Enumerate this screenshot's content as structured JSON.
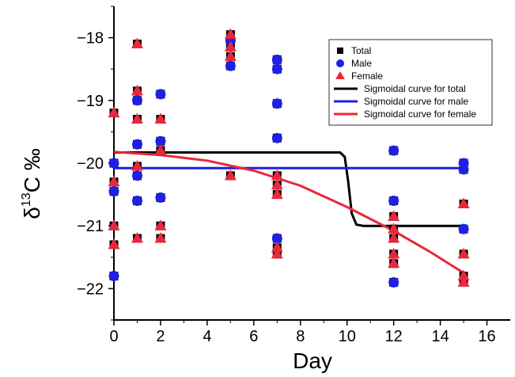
{
  "chart_data": {
    "type": "scatter",
    "title": "",
    "xlabel": "Day",
    "ylabel": {
      "delta": "δ",
      "sup": "13",
      "rest": "C ‰"
    },
    "xlim": [
      0,
      17
    ],
    "ylim": [
      -22.5,
      -17.5
    ],
    "xticks": [
      0,
      2,
      4,
      6,
      8,
      10,
      12,
      14,
      16
    ],
    "yticks": [
      -22,
      -21,
      -20,
      -19,
      -18
    ],
    "grid": false,
    "legend_position": "top-right",
    "colors": {
      "total": "#000000",
      "male": "#1f1fe6",
      "female": "#e8283a"
    },
    "series": [
      {
        "name": "Total",
        "marker": "square",
        "points": [
          [
            0,
            -19.2
          ],
          [
            0,
            -20.0
          ],
          [
            0,
            -20.3
          ],
          [
            0,
            -20.45
          ],
          [
            0,
            -21.0
          ],
          [
            0,
            -21.3
          ],
          [
            0,
            -21.8
          ],
          [
            1,
            -18.1
          ],
          [
            1,
            -18.85
          ],
          [
            1,
            -19.0
          ],
          [
            1,
            -19.3
          ],
          [
            1,
            -19.7
          ],
          [
            1,
            -20.05
          ],
          [
            1,
            -20.2
          ],
          [
            1,
            -20.6
          ],
          [
            1,
            -21.2
          ],
          [
            2,
            -18.9
          ],
          [
            2,
            -19.3
          ],
          [
            2,
            -19.65
          ],
          [
            2,
            -19.8
          ],
          [
            2,
            -20.55
          ],
          [
            2,
            -21.0
          ],
          [
            2,
            -21.2
          ],
          [
            5,
            -17.95
          ],
          [
            5,
            -18.05
          ],
          [
            5,
            -18.15
          ],
          [
            5,
            -18.3
          ],
          [
            5,
            -18.45
          ],
          [
            5,
            -20.2
          ],
          [
            7,
            -18.35
          ],
          [
            7,
            -18.5
          ],
          [
            7,
            -19.05
          ],
          [
            7,
            -19.6
          ],
          [
            7,
            -20.2
          ],
          [
            7,
            -20.35
          ],
          [
            7,
            -20.5
          ],
          [
            7,
            -21.2
          ],
          [
            7,
            -21.35
          ],
          [
            7,
            -21.45
          ],
          [
            12,
            -19.8
          ],
          [
            12,
            -20.6
          ],
          [
            12,
            -20.85
          ],
          [
            12,
            -21.05
          ],
          [
            12,
            -21.2
          ],
          [
            12,
            -21.45
          ],
          [
            12,
            -21.6
          ],
          [
            12,
            -21.9
          ],
          [
            15,
            -20.0
          ],
          [
            15,
            -20.1
          ],
          [
            15,
            -20.65
          ],
          [
            15,
            -21.05
          ],
          [
            15,
            -21.45
          ],
          [
            15,
            -21.8
          ],
          [
            15,
            -21.9
          ]
        ]
      },
      {
        "name": "Male",
        "marker": "circle",
        "points": [
          [
            0,
            -20.0
          ],
          [
            0,
            -20.45
          ],
          [
            0,
            -21.8
          ],
          [
            1,
            -19.0
          ],
          [
            1,
            -19.7
          ],
          [
            1,
            -20.2
          ],
          [
            1,
            -20.6
          ],
          [
            2,
            -18.9
          ],
          [
            2,
            -19.65
          ],
          [
            2,
            -20.55
          ],
          [
            5,
            -18.05
          ],
          [
            5,
            -18.45
          ],
          [
            7,
            -18.35
          ],
          [
            7,
            -18.5
          ],
          [
            7,
            -19.05
          ],
          [
            7,
            -19.6
          ],
          [
            7,
            -21.2
          ],
          [
            12,
            -19.8
          ],
          [
            12,
            -20.6
          ],
          [
            12,
            -21.9
          ],
          [
            15,
            -20.0
          ],
          [
            15,
            -20.1
          ],
          [
            15,
            -21.05
          ]
        ]
      },
      {
        "name": "Female",
        "marker": "triangle",
        "points": [
          [
            0,
            -19.2
          ],
          [
            0,
            -20.3
          ],
          [
            0,
            -21.0
          ],
          [
            0,
            -21.3
          ],
          [
            1,
            -18.1
          ],
          [
            1,
            -18.85
          ],
          [
            1,
            -19.3
          ],
          [
            1,
            -20.05
          ],
          [
            1,
            -21.2
          ],
          [
            2,
            -19.3
          ],
          [
            2,
            -19.8
          ],
          [
            2,
            -21.0
          ],
          [
            2,
            -21.2
          ],
          [
            5,
            -17.95
          ],
          [
            5,
            -18.15
          ],
          [
            5,
            -18.3
          ],
          [
            5,
            -20.2
          ],
          [
            7,
            -20.2
          ],
          [
            7,
            -20.35
          ],
          [
            7,
            -20.5
          ],
          [
            7,
            -21.35
          ],
          [
            7,
            -21.45
          ],
          [
            12,
            -20.85
          ],
          [
            12,
            -21.05
          ],
          [
            12,
            -21.2
          ],
          [
            12,
            -21.45
          ],
          [
            12,
            -21.6
          ],
          [
            15,
            -20.65
          ],
          [
            15,
            -21.45
          ],
          [
            15,
            -21.8
          ],
          [
            15,
            -21.9
          ]
        ]
      }
    ],
    "curves": [
      {
        "name": "Sigmoidal curve for total",
        "color_key": "total",
        "points": [
          [
            0,
            -19.83
          ],
          [
            9.7,
            -19.83
          ],
          [
            9.9,
            -19.9
          ],
          [
            10.05,
            -20.3
          ],
          [
            10.2,
            -20.8
          ],
          [
            10.4,
            -20.98
          ],
          [
            10.7,
            -21.0
          ],
          [
            15,
            -21.0
          ]
        ]
      },
      {
        "name": "Sigmoidal curve for male",
        "color_key": "male",
        "points": [
          [
            0,
            -20.08
          ],
          [
            15,
            -20.08
          ]
        ]
      },
      {
        "name": "Sigmoidal curve for female",
        "color_key": "female",
        "points": [
          [
            0,
            -19.82
          ],
          [
            2,
            -19.87
          ],
          [
            4,
            -19.96
          ],
          [
            6,
            -20.12
          ],
          [
            8,
            -20.36
          ],
          [
            10,
            -20.7
          ],
          [
            12,
            -21.08
          ],
          [
            13.5,
            -21.4
          ],
          [
            15,
            -21.75
          ]
        ]
      }
    ]
  }
}
